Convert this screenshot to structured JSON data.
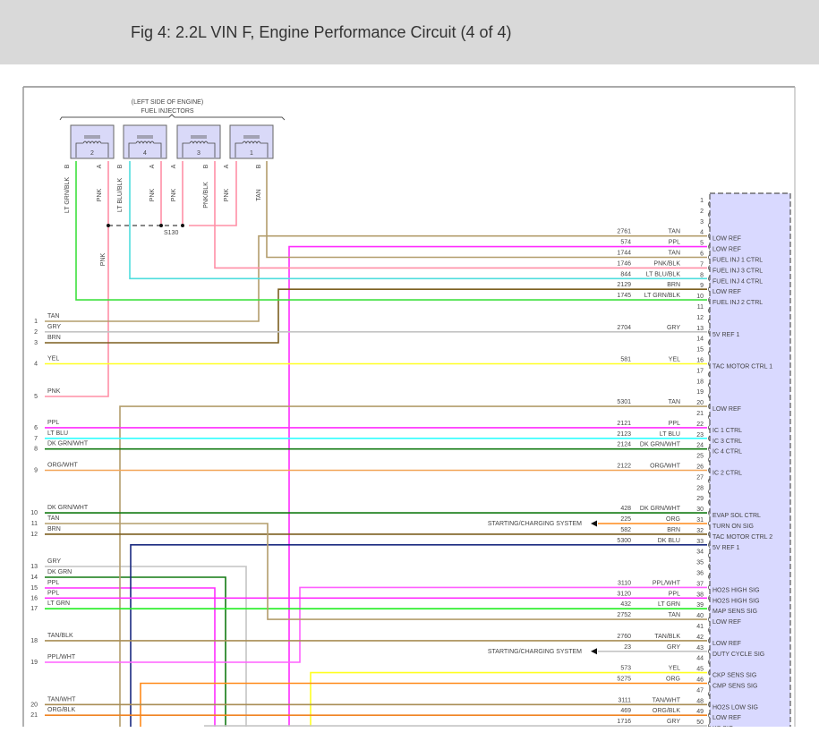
{
  "header": {
    "title": "Fig 4: 2.2L VIN F, Engine Performance Circuit (4 of 4)"
  },
  "injectors": {
    "location": "(LEFT SIDE OF ENGINE)",
    "label": "FUEL INJECTORS",
    "units": [
      {
        "number": "2",
        "pin_b": "B",
        "pin_a": "A",
        "wire_b": "LT GRN/BLK",
        "wire_a": "PNK"
      },
      {
        "number": "4",
        "pin_b": "B",
        "pin_a": "A",
        "wire_b": "LT BLU/BLK",
        "wire_a": "PNK"
      },
      {
        "number": "3",
        "pin_b": "A",
        "pin_a": "B",
        "wire_b": "PNK",
        "wire_a": "PNK/BLK"
      },
      {
        "number": "1",
        "pin_b": "A",
        "pin_a": "B",
        "wire_b": "PNK",
        "wire_a": "TAN"
      }
    ],
    "splice": "S130",
    "splice_wire": "PNK"
  },
  "wire_colors": {
    "TAN": "#b39d6c",
    "PPL": "#ff2cff",
    "PNK/BLK": "#ff8fa6",
    "PNK": "#ff8fa6",
    "LT BLU/BLK": "#4fdede",
    "BRN": "#7b5e1f",
    "LT GRN/BLK": "#3ee03e",
    "GRY": "#c4c4c4",
    "YEL": "#ffff22",
    "LT BLU": "#30ffff",
    "DK GRN/WHT": "#127a12",
    "ORG/WHT": "#f2a558",
    "ORG": "#ff8a1a",
    "DK BLU": "#1a2a80",
    "DK GRN": "#127a12",
    "LT GRN": "#22ee22",
    "PPL/WHT": "#ff60ff",
    "TAN/BLK": "#a88d55",
    "TAN/WHT": "#a88d55",
    "ORG/BLK": "#f08322"
  },
  "connector_pins": [
    {
      "pin": "1"
    },
    {
      "pin": "2"
    },
    {
      "pin": "3"
    },
    {
      "pin": "4",
      "circuit": "2761",
      "color": "TAN",
      "function": "LOW REF"
    },
    {
      "pin": "5",
      "circuit": "574",
      "color": "PPL",
      "function": "LOW REF"
    },
    {
      "pin": "6",
      "circuit": "1744",
      "color": "TAN",
      "function": "FUEL INJ 1 CTRL"
    },
    {
      "pin": "7",
      "circuit": "1746",
      "color": "PNK/BLK",
      "function": "FUEL INJ 3 CTRL"
    },
    {
      "pin": "8",
      "circuit": "844",
      "color": "LT BLU/BLK",
      "function": "FUEL INJ 4 CTRL"
    },
    {
      "pin": "9",
      "circuit": "2129",
      "color": "BRN",
      "function": "LOW REF"
    },
    {
      "pin": "10",
      "circuit": "1745",
      "color": "LT GRN/BLK",
      "function": "FUEL INJ 2 CTRL"
    },
    {
      "pin": "11"
    },
    {
      "pin": "12"
    },
    {
      "pin": "13",
      "circuit": "2704",
      "color": "GRY",
      "function": "5V REF 1"
    },
    {
      "pin": "14"
    },
    {
      "pin": "15"
    },
    {
      "pin": "16",
      "circuit": "581",
      "color": "YEL",
      "function": "TAC MOTOR CTRL 1"
    },
    {
      "pin": "17"
    },
    {
      "pin": "18"
    },
    {
      "pin": "19"
    },
    {
      "pin": "20",
      "circuit": "5301",
      "color": "TAN",
      "function": "LOW REF"
    },
    {
      "pin": "21"
    },
    {
      "pin": "22",
      "circuit": "2121",
      "color": "PPL",
      "function": "IC 1 CTRL"
    },
    {
      "pin": "23",
      "circuit": "2123",
      "color": "LT BLU",
      "function": "IC 3 CTRL"
    },
    {
      "pin": "24",
      "circuit": "2124",
      "color": "DK GRN/WHT",
      "function": "IC 4 CTRL"
    },
    {
      "pin": "25"
    },
    {
      "pin": "26",
      "circuit": "2122",
      "color": "ORG/WHT",
      "function": "IC 2 CTRL"
    },
    {
      "pin": "27"
    },
    {
      "pin": "28"
    },
    {
      "pin": "29"
    },
    {
      "pin": "30",
      "circuit": "428",
      "color": "DK GRN/WHT",
      "function": "EVAP SOL CTRL"
    },
    {
      "pin": "31",
      "circuit": "225",
      "color": "ORG",
      "function": "TURN ON SIG"
    },
    {
      "pin": "32",
      "circuit": "582",
      "color": "BRN",
      "function": "TAC MOTOR CTRL 2"
    },
    {
      "pin": "33",
      "circuit": "5300",
      "color": "DK BLU",
      "function": "5V REF 1"
    },
    {
      "pin": "34"
    },
    {
      "pin": "35"
    },
    {
      "pin": "36"
    },
    {
      "pin": "37",
      "circuit": "3110",
      "color": "PPL/WHT",
      "function": "HO2S HIGH SIG"
    },
    {
      "pin": "38",
      "circuit": "3120",
      "color": "PPL",
      "function": "HO2S HIGH SIG"
    },
    {
      "pin": "39",
      "circuit": "432",
      "color": "LT GRN",
      "function": "MAP SENS SIG"
    },
    {
      "pin": "40",
      "circuit": "2752",
      "color": "TAN",
      "function": "LOW REF"
    },
    {
      "pin": "41"
    },
    {
      "pin": "42",
      "circuit": "2760",
      "color": "TAN/BLK",
      "function": "LOW REF"
    },
    {
      "pin": "43",
      "circuit": "23",
      "color": "GRY",
      "function": "DUTY CYCLE SIG"
    },
    {
      "pin": "44"
    },
    {
      "pin": "45",
      "circuit": "573",
      "color": "YEL",
      "function": "CKP SENS SIG"
    },
    {
      "pin": "46",
      "circuit": "5275",
      "color": "ORG",
      "function": "CMP SENS SIG"
    },
    {
      "pin": "47"
    },
    {
      "pin": "48",
      "circuit": "3111",
      "color": "TAN/WHT",
      "function": "HO2S LOW SIG"
    },
    {
      "pin": "49",
      "circuit": "469",
      "color": "ORG/BLK",
      "function": "LOW REF"
    },
    {
      "pin": "50",
      "circuit": "1716",
      "color": "GRY",
      "function": "KS SIG"
    }
  ],
  "left_pins": [
    {
      "pin": "1",
      "color": "TAN"
    },
    {
      "pin": "2",
      "color": "GRY"
    },
    {
      "pin": "3",
      "color": "BRN"
    },
    {
      "pin": "4",
      "color": "YEL"
    },
    {
      "pin": "5",
      "color": "PNK"
    },
    {
      "pin": "6",
      "color": "PPL"
    },
    {
      "pin": "7",
      "color": "LT BLU"
    },
    {
      "pin": "8",
      "color": "DK GRN/WHT"
    },
    {
      "pin": "9",
      "color": "ORG/WHT"
    },
    {
      "pin": "10",
      "color": "DK GRN/WHT"
    },
    {
      "pin": "11",
      "color": "TAN"
    },
    {
      "pin": "12",
      "color": "BRN"
    },
    {
      "pin": "13",
      "color": "GRY"
    },
    {
      "pin": "14",
      "color": "DK GRN"
    },
    {
      "pin": "15",
      "color": "PPL"
    },
    {
      "pin": "16",
      "color": "PPL"
    },
    {
      "pin": "17",
      "color": "LT GRN"
    },
    {
      "pin": "18",
      "color": "TAN/BLK"
    },
    {
      "pin": "19",
      "color": "PPL/WHT"
    },
    {
      "pin": "20",
      "color": "TAN/WHT"
    },
    {
      "pin": "21",
      "color": "ORG/BLK"
    }
  ],
  "references": [
    {
      "pin": "31",
      "label": "STARTING/CHARGING SYSTEM"
    },
    {
      "pin": "43",
      "label": "STARTING/CHARGING SYSTEM"
    }
  ]
}
